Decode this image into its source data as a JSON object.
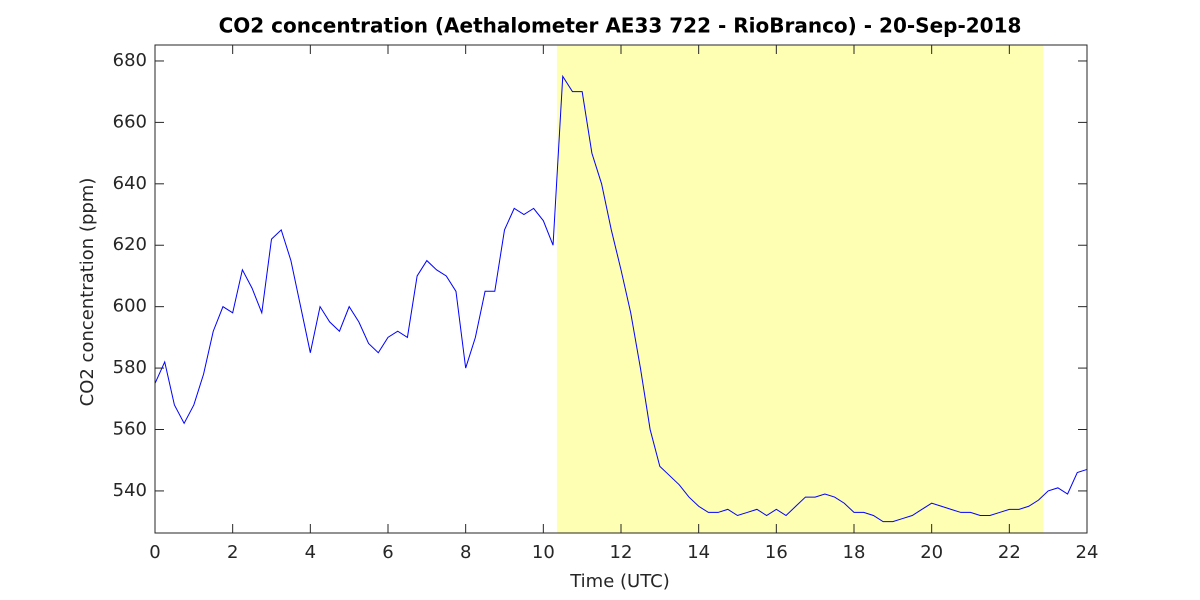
{
  "chart_data": {
    "type": "line",
    "title": "CO2 concentration (Aethalometer AE33 722 - RioBranco) - 20-Sep-2018",
    "xlabel": "Time (UTC)",
    "ylabel": "CO2 concentration (ppm)",
    "xlim": [
      0,
      24
    ],
    "ylim": [
      526.3,
      685.2
    ],
    "xticks": [
      0,
      2,
      4,
      6,
      8,
      10,
      12,
      14,
      16,
      18,
      20,
      22,
      24
    ],
    "yticks": [
      540,
      560,
      580,
      600,
      620,
      640,
      660,
      680
    ],
    "shaded_region": {
      "x": [
        10.35,
        22.87
      ],
      "color": "#ffffb3"
    },
    "series": [
      {
        "color": "#0000ff",
        "x": [
          0,
          0.25,
          0.5,
          0.75,
          1,
          1.25,
          1.5,
          1.75,
          2,
          2.25,
          2.5,
          2.75,
          3,
          3.25,
          3.5,
          3.75,
          4,
          4.25,
          4.5,
          4.75,
          5,
          5.25,
          5.5,
          5.75,
          6,
          6.25,
          6.5,
          6.75,
          7,
          7.25,
          7.5,
          7.75,
          8,
          8.25,
          8.5,
          8.75,
          9,
          9.25,
          9.5,
          9.75,
          10,
          10.25,
          10.5,
          10.75,
          11,
          11.25,
          11.5,
          11.75,
          12,
          12.25,
          12.5,
          12.75,
          13,
          13.25,
          13.5,
          13.75,
          14,
          14.25,
          14.5,
          14.75,
          15,
          15.25,
          15.5,
          15.75,
          16,
          16.25,
          16.5,
          16.75,
          17,
          17.25,
          17.5,
          17.75,
          18,
          18.25,
          18.5,
          18.75,
          19,
          19.25,
          19.5,
          19.75,
          20,
          20.25,
          20.5,
          20.75,
          21,
          21.25,
          21.5,
          21.75,
          22,
          22.25,
          22.5,
          22.75,
          23,
          23.25,
          23.5,
          23.75,
          24
        ],
        "values": [
          575,
          582,
          568,
          562,
          568,
          578,
          592,
          600,
          598,
          612,
          606,
          598,
          622,
          625,
          615,
          600,
          585,
          600,
          595,
          592,
          600,
          595,
          588,
          585,
          590,
          592,
          590,
          610,
          615,
          612,
          610,
          605,
          580,
          590,
          605,
          605,
          625,
          632,
          630,
          632,
          628,
          620,
          675,
          670,
          670,
          650,
          640,
          625,
          612,
          598,
          580,
          560,
          548,
          545,
          542,
          538,
          535,
          533,
          533,
          534,
          532,
          533,
          534,
          532,
          534,
          532,
          535,
          538,
          538,
          539,
          538,
          536,
          533,
          533,
          532,
          530,
          530,
          531,
          532,
          534,
          536,
          535,
          534,
          533,
          533,
          532,
          532,
          533,
          534,
          534,
          535,
          537,
          540,
          541,
          539,
          546,
          547
        ]
      }
    ]
  }
}
